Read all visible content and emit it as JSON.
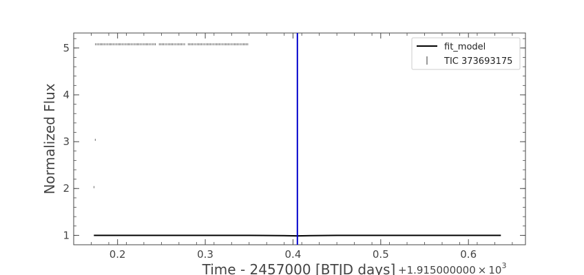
{
  "chart_data": {
    "type": "scatter",
    "title": "",
    "xlabel": "Time - 2457000 [BTJD days]",
    "ylabel": "Normalized Flux",
    "x_offset_text": "+1.915000000×10³",
    "x_offset_prefix": "+1.915000000",
    "x_offset_times": "×",
    "x_offset_base": "10",
    "x_offset_exp": "3",
    "xlim": [
      0.15,
      0.665
    ],
    "ylim": [
      0.8,
      5.32
    ],
    "xticks": [
      0.2,
      0.3,
      0.4,
      0.5,
      0.6
    ],
    "xtick_labels": [
      "0.2",
      "0.3",
      "0.4",
      "0.5",
      "0.6"
    ],
    "yticks": [
      1,
      2,
      3,
      4,
      5
    ],
    "ytick_labels": [
      "1",
      "2",
      "3",
      "4",
      "5"
    ],
    "grid": false,
    "legend_position": "top-right",
    "colors": {
      "model": "#000000",
      "data": "#000000",
      "vline": "#0000cc",
      "axis": "#444444"
    },
    "series": [
      {
        "name": "fit_model",
        "kind": "line",
        "x": [
          0.173,
          0.25,
          0.35,
          0.39,
          0.405,
          0.42,
          0.45,
          0.55,
          0.637
        ],
        "y": [
          1.0,
          1.0,
          1.0,
          0.995,
          0.99,
          0.995,
          1.0,
          1.0,
          1.0
        ]
      },
      {
        "name": "TIC 373693175",
        "kind": "markers",
        "segments": [
          {
            "x_start": 0.175,
            "x_end": 0.2435,
            "y": 5.08
          },
          {
            "x_start": 0.2475,
            "x_end": 0.2775,
            "y": 5.08
          },
          {
            "x_start": 0.2805,
            "x_end": 0.35,
            "y": 5.08
          }
        ],
        "points": [
          {
            "x": 0.1745,
            "y": 3.04
          },
          {
            "x": 0.173,
            "y": 2.03
          }
        ]
      }
    ],
    "annotations": [
      {
        "type": "vline",
        "x": 0.405
      }
    ]
  }
}
